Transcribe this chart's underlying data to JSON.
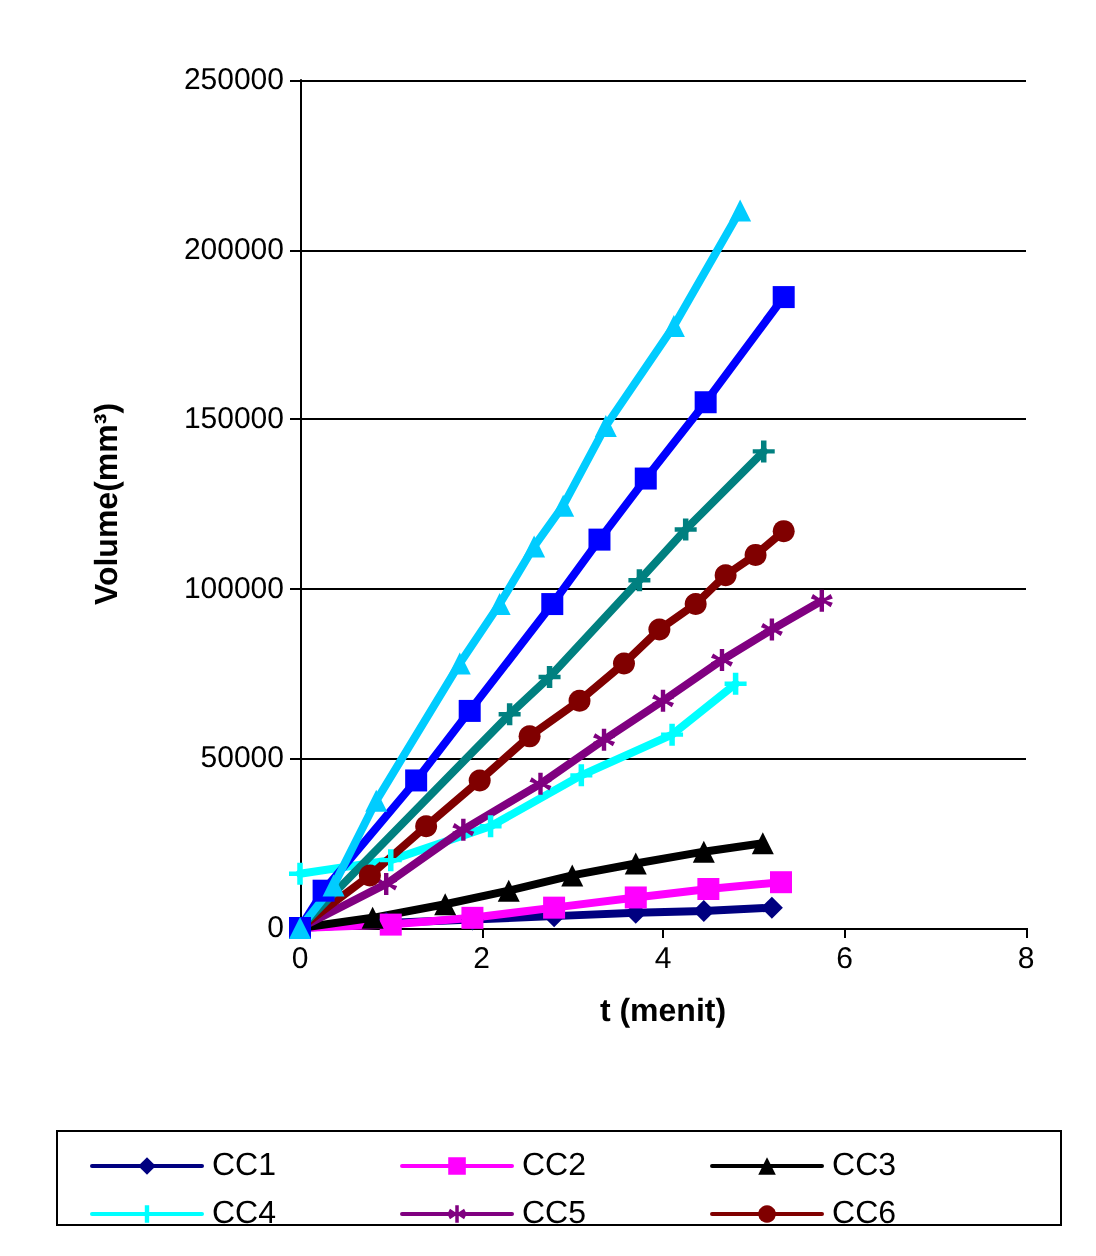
{
  "chart_data": {
    "type": "line",
    "xlabel": "t (menit)",
    "ylabel": "Volume(mm³)",
    "xlim": [
      0,
      8
    ],
    "xticks": [
      0,
      2,
      4,
      6,
      8
    ],
    "ylim": [
      0,
      250000
    ],
    "yticks": [
      0,
      50000,
      100000,
      150000,
      200000,
      250000
    ],
    "grid": "y",
    "legend": "bottom",
    "line_style": "solid",
    "series": [
      {
        "name": "CC1",
        "color": "#000080",
        "marker": "diamond",
        "x": [
          0,
          0.95,
          1.9,
          2.8,
          3.7,
          4.45,
          5.2
        ],
        "values": [
          0,
          1500,
          2500,
          3500,
          4500,
          5000,
          6000
        ]
      },
      {
        "name": "CC2",
        "color": "#ff00ff",
        "marker": "square",
        "x": [
          0,
          1,
          1.9,
          2.8,
          3.7,
          4.5,
          5.3
        ],
        "values": [
          0,
          1000,
          3000,
          6000,
          9000,
          11500,
          13500
        ]
      },
      {
        "name": "CC3",
        "color": "#000000",
        "marker": "triangle",
        "x": [
          0,
          0.8,
          1.6,
          2.3,
          3.0,
          3.7,
          4.45,
          5.1
        ],
        "values": [
          0,
          3000,
          7000,
          11000,
          15500,
          19000,
          22500,
          25000
        ]
      },
      {
        "name": "CC4",
        "color": "#00ffff",
        "marker": "cross",
        "x": [
          0,
          1,
          2.1,
          3.1,
          4.1,
          4.8
        ],
        "values": [
          16000,
          20000,
          30000,
          45000,
          57000,
          72000
        ]
      },
      {
        "name": "CC5",
        "color": "#800080",
        "marker": "star",
        "x": [
          0,
          0.95,
          1.8,
          2.65,
          3.35,
          4.0,
          4.65,
          5.2,
          5.75
        ],
        "values": [
          0,
          13000,
          29000,
          42500,
          55500,
          67000,
          79000,
          88000,
          96500
        ]
      },
      {
        "name": "CC6",
        "color": "#800000",
        "marker": "circle",
        "x": [
          0,
          0.77,
          1.39,
          1.98,
          2.53,
          3.08,
          3.57,
          3.96,
          4.36,
          4.69,
          5.02,
          5.33
        ],
        "values": [
          0,
          15500,
          30000,
          43500,
          56500,
          67000,
          78000,
          88000,
          95500,
          104000,
          110000,
          117000
        ]
      },
      {
        "color": "#008080",
        "marker": "cross",
        "x": [
          0,
          2.31,
          2.75,
          3.74,
          4.25,
          5.11
        ],
        "values": [
          0,
          63000,
          74000,
          102500,
          117500,
          140500
        ]
      },
      {
        "color": "#0000ff",
        "marker": "square",
        "x": [
          0,
          0.26,
          1.28,
          1.87,
          2.78,
          3.3,
          3.81,
          4.47,
          5.33
        ],
        "values": [
          0,
          11000,
          43500,
          64000,
          95500,
          114500,
          132500,
          155000,
          186000
        ]
      },
      {
        "color": "#00ccff",
        "marker": "triangle",
        "x": [
          0,
          0.37,
          0.84,
          1.76,
          2.2,
          2.58,
          2.9,
          3.37,
          4.12,
          4.85
        ],
        "values": [
          0,
          12500,
          37500,
          78000,
          95500,
          112500,
          124500,
          148000,
          177500,
          211500
        ]
      }
    ]
  }
}
